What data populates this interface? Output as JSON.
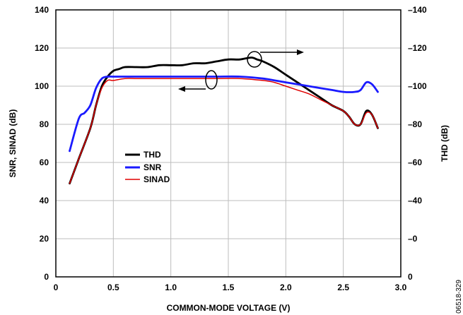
{
  "chart_data": {
    "type": "line",
    "title": "",
    "xlabel": "COMMON-MODE VOLTAGE (V)",
    "ylabel_left": "SNR, SINAD (dB)",
    "ylabel_right": "THD (dB)",
    "xlim": [
      0,
      3.0
    ],
    "ylim_left": [
      0,
      140
    ],
    "ylim_right": [
      0,
      -140
    ],
    "x_ticks": [
      0,
      0.5,
      1.0,
      1.5,
      2.0,
      2.5,
      3.0
    ],
    "x_tick_labels": [
      "0",
      "0.5",
      "1.0",
      "1.5",
      "2.0",
      "2.5",
      "3.0"
    ],
    "y_left_ticks": [
      0,
      20,
      40,
      60,
      80,
      100,
      120,
      140
    ],
    "y_left_tick_labels": [
      "0",
      "20",
      "40",
      "60",
      "80",
      "100",
      "120",
      "140"
    ],
    "y_right_tick_labels": [
      "0",
      "–0",
      "–40",
      "–60",
      "–80",
      "–100",
      "–120",
      "–140"
    ],
    "grid": true,
    "legend_position": "center-left",
    "figure_id": "06518-329",
    "series": [
      {
        "name": "THD",
        "color": "#000000",
        "axis": "right",
        "x": [
          0.12,
          0.2,
          0.3,
          0.35,
          0.4,
          0.45,
          0.5,
          0.55,
          0.6,
          0.7,
          0.8,
          0.9,
          1.0,
          1.1,
          1.2,
          1.3,
          1.4,
          1.5,
          1.6,
          1.7,
          1.75,
          1.8,
          1.9,
          2.0,
          2.1,
          2.2,
          2.3,
          2.4,
          2.5,
          2.55,
          2.6,
          2.65,
          2.7,
          2.75,
          2.8
        ],
        "y": [
          -49,
          -62,
          -78,
          -90,
          -100,
          -105,
          -108,
          -109,
          -110,
          -110,
          -110,
          -111,
          -111,
          -111,
          -112,
          -112,
          -113,
          -114,
          -114,
          -115,
          -114,
          -113,
          -110,
          -106,
          -102,
          -98,
          -94,
          -90,
          -87,
          -84,
          -80,
          -80,
          -87,
          -85,
          -78
        ]
      },
      {
        "name": "SNR",
        "color": "#1a1aff",
        "axis": "left",
        "x": [
          0.12,
          0.2,
          0.25,
          0.3,
          0.35,
          0.4,
          0.45,
          0.5,
          0.6,
          0.7,
          0.8,
          0.9,
          1.0,
          1.2,
          1.4,
          1.6,
          1.8,
          2.0,
          2.1,
          2.2,
          2.3,
          2.4,
          2.5,
          2.6,
          2.65,
          2.7,
          2.75,
          2.8
        ],
        "y": [
          66,
          83,
          86,
          90,
          99,
          104,
          105,
          105,
          105,
          105,
          105,
          105,
          105,
          105,
          105,
          105,
          104,
          102,
          101,
          100,
          99,
          98,
          97,
          97,
          98,
          102,
          101,
          97
        ]
      },
      {
        "name": "SINAD",
        "color": "#e00000",
        "axis": "left",
        "x": [
          0.12,
          0.2,
          0.3,
          0.35,
          0.4,
          0.45,
          0.5,
          0.6,
          0.7,
          0.8,
          1.0,
          1.2,
          1.4,
          1.6,
          1.8,
          1.9,
          2.0,
          2.1,
          2.2,
          2.3,
          2.4,
          2.5,
          2.55,
          2.6,
          2.65,
          2.7,
          2.75,
          2.8
        ],
        "y": [
          49,
          62,
          78,
          90,
          99,
          103,
          103,
          104,
          104,
          104,
          104,
          104,
          104,
          104,
          103,
          102,
          100,
          98,
          96,
          93,
          90,
          87,
          84,
          80,
          80,
          86,
          85,
          78
        ]
      }
    ]
  }
}
